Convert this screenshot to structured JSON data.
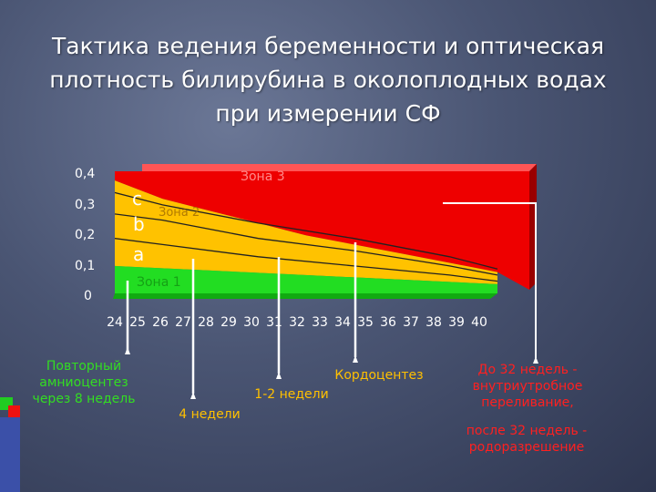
{
  "title": {
    "line1": "Тактика ведения беременности и оптическая",
    "line2": "плотность билирубина в околоплодных водах",
    "line3": "при измерении СФ"
  },
  "chart_data": {
    "type": "area",
    "y_ticks": [
      "0,4",
      "0,3",
      "0,2",
      "0,1",
      "0"
    ],
    "x_ticks": [
      "24",
      "25",
      "26",
      "27",
      "28",
      "29",
      "30",
      "31",
      "32",
      "33",
      "34",
      "35",
      "36",
      "37",
      "38",
      "39",
      "40"
    ],
    "ylim": [
      0,
      0.4
    ],
    "xlim": [
      24,
      40
    ],
    "zone_labels": {
      "zone3": "Зона 3",
      "zone2": "Зона 2",
      "zone1": "Зона 1"
    },
    "line_labels": {
      "c": "c",
      "b": "b",
      "a": "a"
    },
    "boundaries": {
      "zone1_top": {
        "x": [
          24,
          40
        ],
        "y": [
          0.09,
          0.03
        ]
      },
      "zone2_top": {
        "x": [
          24,
          26,
          28,
          30,
          32,
          34,
          36,
          38,
          40
        ],
        "y": [
          0.37,
          0.31,
          0.27,
          0.23,
          0.19,
          0.16,
          0.13,
          0.1,
          0.07
        ]
      },
      "line_a": {
        "x": [
          24,
          26,
          30,
          34,
          38,
          40
        ],
        "y": [
          0.18,
          0.16,
          0.12,
          0.09,
          0.06,
          0.04
        ]
      },
      "line_b": {
        "x": [
          24,
          26,
          30,
          34,
          38,
          40
        ],
        "y": [
          0.26,
          0.24,
          0.18,
          0.14,
          0.09,
          0.06
        ]
      },
      "line_c": {
        "x": [
          24,
          26,
          30,
          34,
          38,
          40
        ],
        "y": [
          0.33,
          0.29,
          0.23,
          0.18,
          0.12,
          0.08
        ]
      }
    },
    "colors": {
      "zone1": "#22dd22",
      "zone2": "#ffc200",
      "zone3": "#ee0000",
      "lines": "#222222"
    },
    "grid": false
  },
  "callouts": {
    "c1": {
      "lines": [
        "Повторный",
        "амниоцентез",
        "через 8 недель"
      ],
      "color": "#33dd22"
    },
    "c2": {
      "lines": [
        "4 недели"
      ],
      "color": "#ffc000"
    },
    "c3": {
      "lines": [
        "1-2 недели"
      ],
      "color": "#ffc000"
    },
    "c4": {
      "lines": [
        "Кордоцентез"
      ],
      "color": "#ffc000"
    },
    "c5": {
      "lines": [
        "До 32 недель -",
        "внутриутробное",
        "переливание,"
      ],
      "color": "#ff2020"
    },
    "c6": {
      "lines": [
        "после 32 недель -",
        "родоразрешение"
      ],
      "color": "#ff2020"
    }
  }
}
